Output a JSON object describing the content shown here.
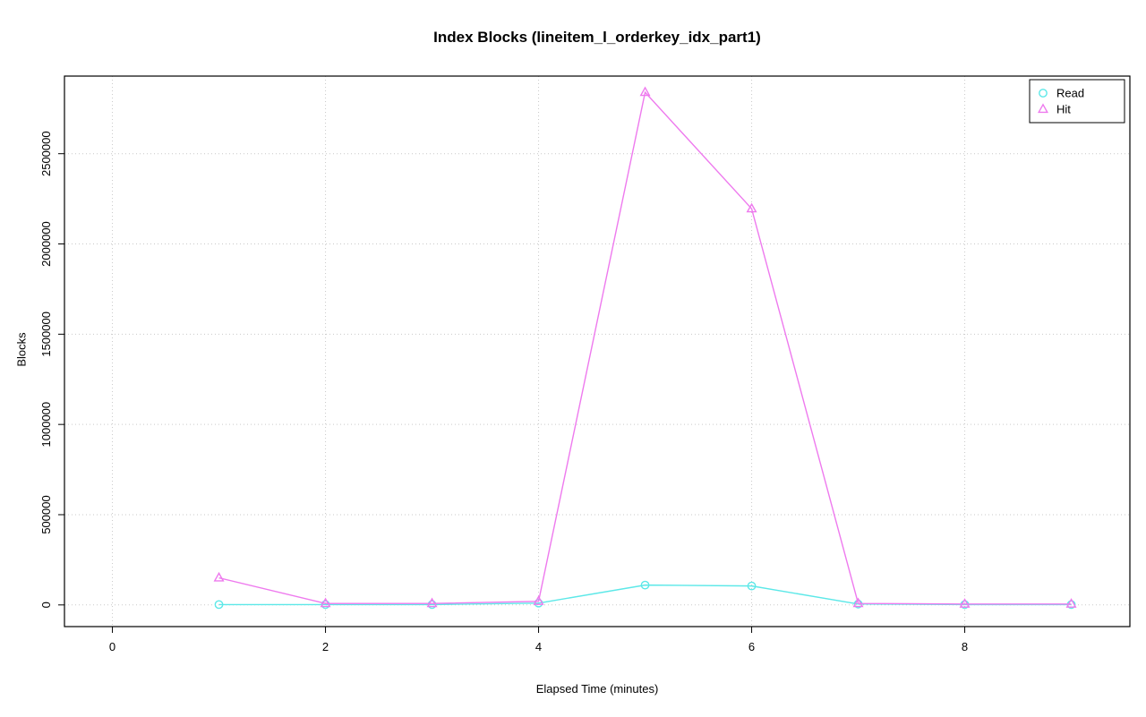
{
  "chart_data": {
    "type": "line",
    "title": "Index Blocks (lineitem_l_orderkey_idx_part1)",
    "xlabel": "Elapsed Time (minutes)",
    "ylabel": "Blocks",
    "xlim": [
      -0.45,
      9.55
    ],
    "ylim": [
      -120000,
      2930000
    ],
    "x_ticks": [
      0,
      2,
      4,
      6,
      8
    ],
    "y_ticks": [
      0,
      500000,
      1000000,
      1500000,
      2000000,
      2500000
    ],
    "grid": true,
    "x": [
      1,
      2,
      3,
      4,
      5,
      6,
      7,
      8,
      9
    ],
    "series": [
      {
        "name": "Read",
        "color": "#5ce8e8",
        "marker": "circle",
        "values": [
          2000,
          2000,
          2000,
          10000,
          110000,
          105000,
          5000,
          2000,
          2000
        ]
      },
      {
        "name": "Hit",
        "color": "#ee7aee",
        "marker": "triangle",
        "values": [
          150000,
          8000,
          8000,
          20000,
          2840000,
          2195000,
          8000,
          5000,
          5000
        ]
      }
    ],
    "legend": {
      "position": "topright",
      "entries": [
        "Read",
        "Hit"
      ]
    },
    "colors": {
      "grid": "#c9c9c9",
      "axis": "#000000",
      "background": "#ffffff"
    }
  }
}
